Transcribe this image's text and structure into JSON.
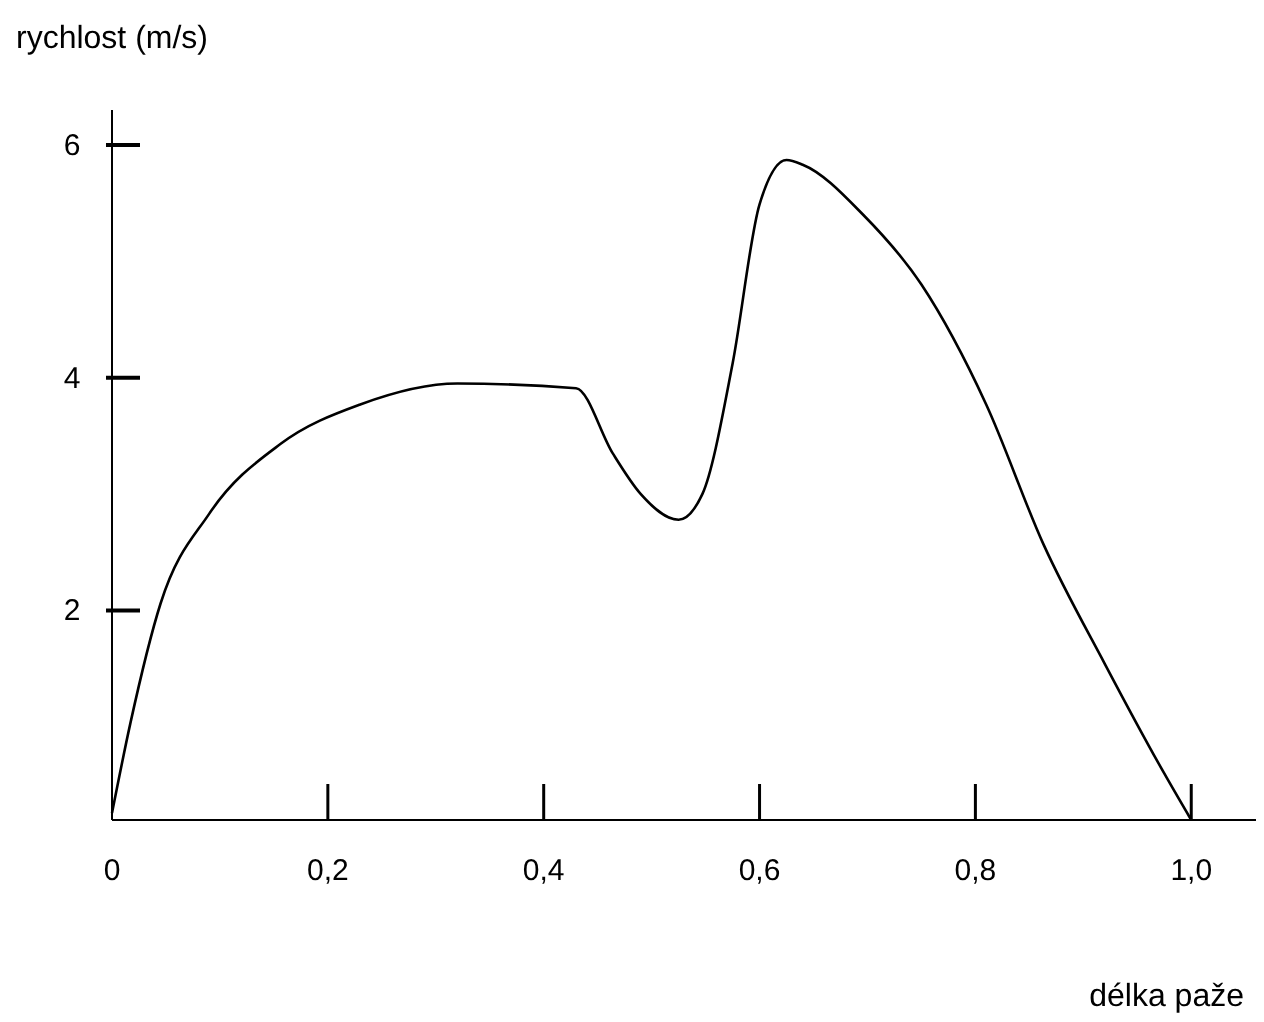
{
  "chart_data": {
    "type": "line",
    "xlabel": "délka paže",
    "ylabel": "rychlost (m/s)",
    "xlim": [
      0,
      1.06
    ],
    "ylim": [
      0.2,
      6.3
    ],
    "xticks": [
      {
        "value": 0,
        "label": "0"
      },
      {
        "value": 0.2,
        "label": "0,2"
      },
      {
        "value": 0.4,
        "label": "0,4"
      },
      {
        "value": 0.6,
        "label": "0,6"
      },
      {
        "value": 0.8,
        "label": "0,8"
      },
      {
        "value": 1,
        "label": "1,0"
      }
    ],
    "yticks": [
      2,
      4,
      6
    ],
    "grid": false,
    "marker": "none",
    "line_style": "solid",
    "series": [
      {
        "color": "#000000",
        "x": [
          0,
          0.017,
          0.045,
          0.09,
          0.156,
          0.23,
          0.32,
          0.43,
          0.464,
          0.49,
          0.525,
          0.547,
          0.575,
          0.6,
          0.625,
          0.64,
          0.696,
          0.75,
          0.81,
          0.863,
          0.92,
          0.975,
          1.0
        ],
        "values": [
          0.26,
          1.03,
          2.06,
          2.83,
          3.43,
          3.77,
          3.95,
          3.91,
          3.35,
          3.0,
          2.78,
          3.0,
          4.12,
          5.49,
          5.87,
          5.83,
          5.4,
          4.8,
          3.77,
          2.57,
          1.54,
          0.6,
          0.2
        ]
      }
    ]
  }
}
